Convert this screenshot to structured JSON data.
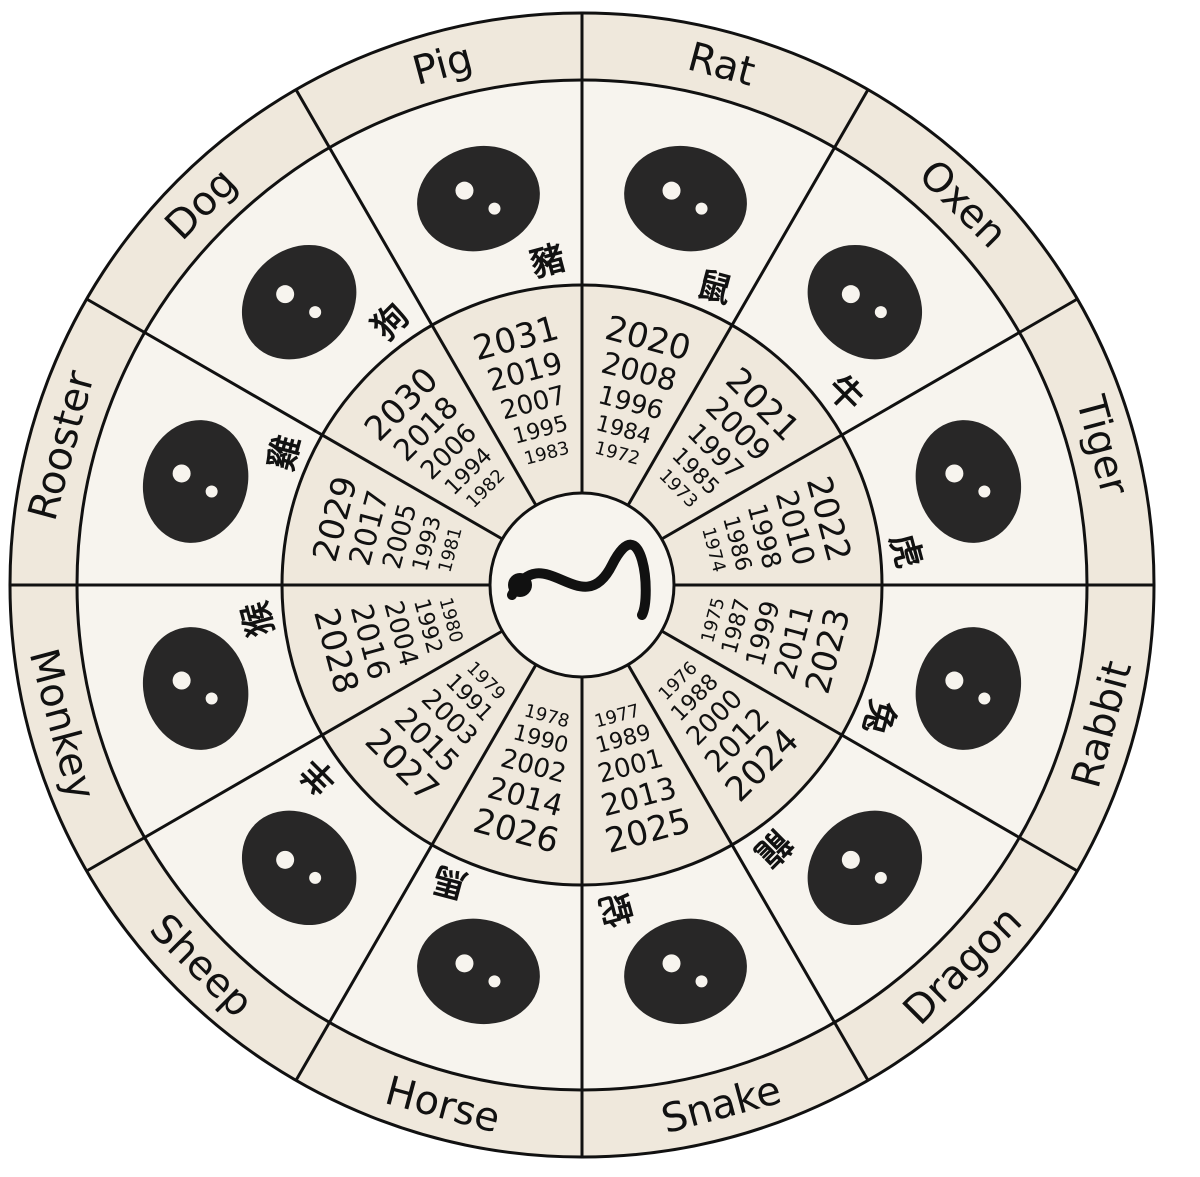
{
  "colors": {
    "background": "#efe8dc",
    "inner": "#f7f4ee",
    "line": "#111111",
    "ink": "#111111"
  },
  "segments": [
    {
      "name": "Rat",
      "character": "鼠",
      "years": [
        "2020",
        "2008",
        "1996",
        "1984",
        "1972"
      ],
      "icon": "rat-icon"
    },
    {
      "name": "Oxen",
      "character": "牛",
      "years": [
        "2021",
        "2009",
        "1997",
        "1985",
        "1973"
      ],
      "icon": "ox-icon"
    },
    {
      "name": "Tiger",
      "character": "虎",
      "years": [
        "2022",
        "2010",
        "1998",
        "1986",
        "1974"
      ],
      "icon": "tiger-icon"
    },
    {
      "name": "Rabbit",
      "character": "兔",
      "years": [
        "2023",
        "2011",
        "1999",
        "1987",
        "1975"
      ],
      "icon": "rabbit-icon"
    },
    {
      "name": "Dragon",
      "character": "龍",
      "years": [
        "2024",
        "2012",
        "2000",
        "1988",
        "1976"
      ],
      "icon": "dragon-icon"
    },
    {
      "name": "Snake",
      "character": "蛇",
      "years": [
        "2025",
        "2013",
        "2001",
        "1989",
        "1977"
      ],
      "icon": "snake-icon"
    },
    {
      "name": "Horse",
      "character": "馬",
      "years": [
        "2026",
        "2014",
        "2002",
        "1990",
        "1978"
      ],
      "icon": "horse-icon"
    },
    {
      "name": "Sheep",
      "character": "羊",
      "years": [
        "2027",
        "2015",
        "2003",
        "1991",
        "1979"
      ],
      "icon": "sheep-icon"
    },
    {
      "name": "Monkey",
      "character": "猴",
      "years": [
        "2028",
        "2016",
        "2004",
        "1992",
        "1980"
      ],
      "icon": "monkey-icon"
    },
    {
      "name": "Rooster",
      "character": "雞",
      "years": [
        "2029",
        "2017",
        "2005",
        "1993",
        "1981"
      ],
      "icon": "rooster-icon"
    },
    {
      "name": "Dog",
      "character": "狗",
      "years": [
        "2030",
        "2018",
        "2006",
        "1994",
        "1982"
      ],
      "icon": "dog-icon"
    },
    {
      "name": "Pig",
      "character": "豬",
      "years": [
        "2031",
        "2019",
        "2007",
        "1995",
        "1983"
      ],
      "icon": "pig-icon"
    }
  ],
  "center_icon": "dragon-icon"
}
